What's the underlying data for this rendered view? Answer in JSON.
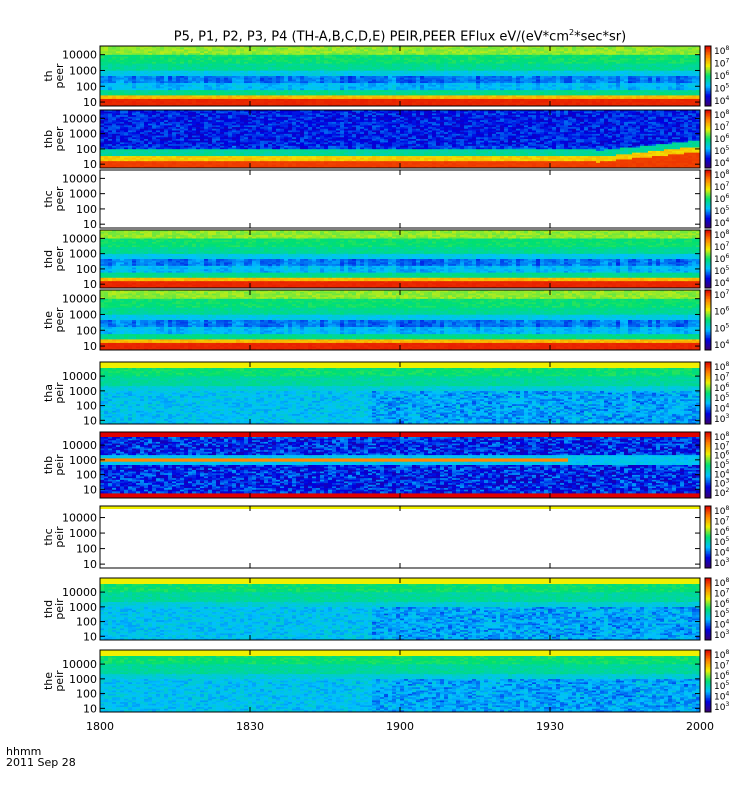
{
  "title": {
    "text_before_sup": "P5, P1, P2, P3, P4 (TH-A,B,C,D,E) PEIR,PEER EFlux eV/(eV*cm",
    "superscript": "2",
    "text_after_sup": "*sec*sr)"
  },
  "footer": {
    "time_format": "hhmm",
    "date": "2011 Sep 28"
  },
  "chart_data": {
    "type": "heatmap",
    "x_ticks": [
      "1800",
      "1830",
      "1900",
      "1930",
      "2000"
    ],
    "xlim": [
      "1800",
      "2000"
    ],
    "y_scale": "log",
    "y_ticks": [
      "10",
      "100",
      "1000",
      "10000"
    ],
    "colormap": [
      "#3a0070",
      "#0000e0",
      "#00c0ff",
      "#00e070",
      "#f0f000",
      "#ff8000",
      "#e00000"
    ],
    "panels": [
      {
        "label": [
          "th",
          "peer"
        ],
        "cbar_ticks": [
          "10^8",
          "10^7",
          "10^6",
          "10^5",
          "10^4"
        ],
        "has_data": true
      },
      {
        "label": [
          "thb",
          "peer"
        ],
        "cbar_ticks": [
          "10^8",
          "10^7",
          "10^6",
          "10^5",
          "10^4"
        ],
        "has_data": true
      },
      {
        "label": [
          "thc",
          "peer"
        ],
        "cbar_ticks": [
          "10^8",
          "10^7",
          "10^6",
          "10^5",
          "10^4"
        ],
        "has_data": false
      },
      {
        "label": [
          "thd",
          "peer"
        ],
        "cbar_ticks": [
          "10^8",
          "10^7",
          "10^6",
          "10^5",
          "10^4"
        ],
        "has_data": true
      },
      {
        "label": [
          "the",
          "peer"
        ],
        "cbar_ticks": [
          "10^7",
          "10^6",
          "10^5",
          "10^4"
        ],
        "has_data": true
      },
      {
        "label": [
          "tha",
          "peir"
        ],
        "cbar_ticks": [
          "10^8",
          "10^7",
          "10^6",
          "10^5",
          "10^4",
          "10^3"
        ],
        "has_data": true
      },
      {
        "label": [
          "thb",
          "peir"
        ],
        "cbar_ticks": [
          "10^8",
          "10^7",
          "10^6",
          "10^5",
          "10^4",
          "10^3",
          "10^2"
        ],
        "has_data": true
      },
      {
        "label": [
          "thc",
          "peir"
        ],
        "cbar_ticks": [
          "10^8",
          "10^7",
          "10^6",
          "10^5",
          "10^4",
          "10^3"
        ],
        "has_data": false
      },
      {
        "label": [
          "thd",
          "peir"
        ],
        "cbar_ticks": [
          "10^8",
          "10^7",
          "10^6",
          "10^5",
          "10^4",
          "10^3"
        ],
        "has_data": true
      },
      {
        "label": [
          "the",
          "peir"
        ],
        "cbar_ticks": [
          "10^8",
          "10^7",
          "10^6",
          "10^5",
          "10^4",
          "10^3"
        ],
        "has_data": true
      }
    ]
  }
}
